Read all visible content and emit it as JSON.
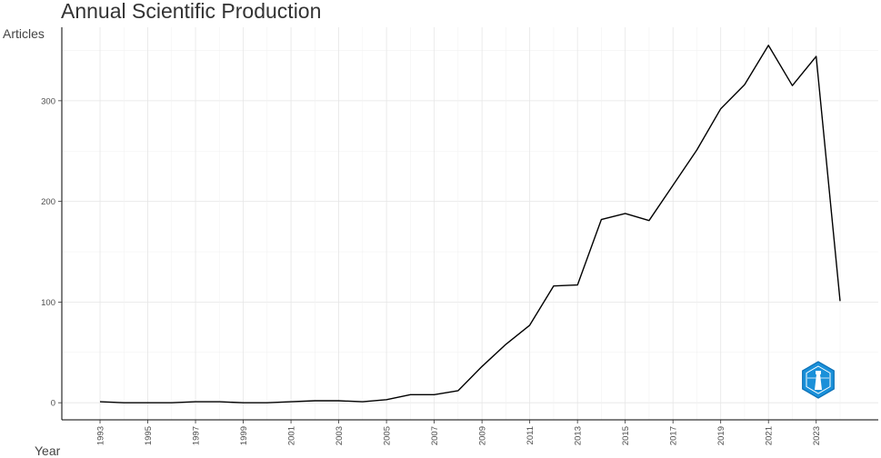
{
  "chart_data": {
    "type": "line",
    "title": "Annual Scientific Production",
    "xlabel": "Year",
    "ylabel": "Articles",
    "xlim": [
      1993,
      2024
    ],
    "ylim": [
      0,
      350
    ],
    "grid": true,
    "x_ticks": [
      "1993",
      "1995",
      "1997",
      "1999",
      "2001",
      "2003",
      "2005",
      "2007",
      "2009",
      "2011",
      "2013",
      "2015",
      "2017",
      "2019",
      "2021",
      "2023"
    ],
    "y_ticks": [
      "0",
      "100",
      "200",
      "300"
    ],
    "series": [
      {
        "x": [
          1993,
          1994,
          1995,
          1996,
          1997,
          1998,
          1999,
          2000,
          2001,
          2002,
          2003,
          2004,
          2005,
          2006,
          2007,
          2008,
          2009,
          2010,
          2011,
          2012,
          2013,
          2014,
          2015,
          2016,
          2017,
          2018,
          2019,
          2020,
          2021,
          2022,
          2023,
          2024
        ],
        "values": [
          1,
          0,
          0,
          0,
          1,
          1,
          0,
          0,
          1,
          2,
          2,
          1,
          3,
          8,
          8,
          12,
          36,
          58,
          77,
          116,
          117,
          182,
          188,
          181,
          216,
          251,
          292,
          316,
          355,
          315,
          344,
          101
        ]
      }
    ],
    "colors": {
      "line": "#000000",
      "logo_fill": "#1a90d9",
      "logo_stroke": "#ffffff"
    },
    "logo_icon": "hexagon-lighthouse-logo"
  }
}
